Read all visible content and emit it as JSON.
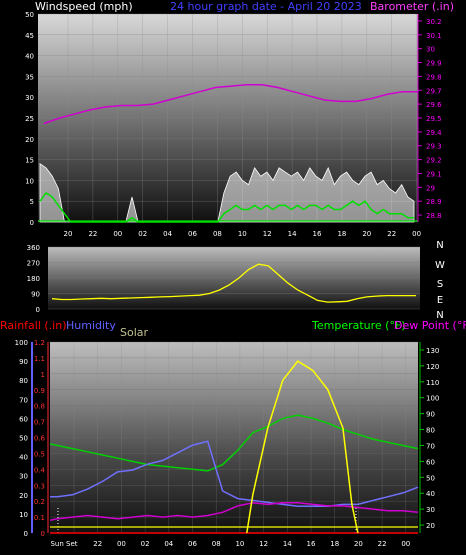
{
  "header": {
    "left_title": "Windspeed (mph)",
    "center_title": "24 hour graph date - April 20 2023",
    "right_title": "Barometer (.in)"
  },
  "compass": [
    "N",
    "W",
    "S",
    "E",
    "N"
  ],
  "bottom_labels": {
    "rainfall": "Rainfall (.in)",
    "humidity": "Humidity",
    "solar": "Solar",
    "temperature": "Temperature (°F)",
    "dewpoint": "Dew Point (°F)",
    "x_start": "Sun Set"
  },
  "colors": {
    "wind_speed": "#ffffff",
    "wind_avg": "#00e000",
    "barometer": "#d000d0",
    "direction": "#ffff00",
    "rain": "#ff0000",
    "humidity": "#7070ff",
    "solar": "#ffff00",
    "temperature": "#00d000",
    "dewpoint": "#d000d0",
    "text_green": "#00ff00",
    "text_pink": "#ff00ff",
    "text_blue": "#5050ff",
    "text_red": "#ff0000",
    "text_solar": "#c0c090"
  },
  "chart_data": [
    {
      "type": "area",
      "id": "wind",
      "ylabel": "Windspeed (mph)",
      "y2label": "Barometer (.in)",
      "x_ticks": [
        "20",
        "22",
        "00",
        "02",
        "04",
        "06",
        "08",
        "10",
        "12",
        "14",
        "16",
        "18",
        "20",
        "22",
        "00"
      ],
      "y_ticks": [
        0,
        5,
        10,
        15,
        20,
        25,
        30,
        35,
        40,
        45,
        50
      ],
      "ylim": [
        0,
        50
      ],
      "y2_ticks": [
        "28.8",
        "28.9",
        "29",
        "29.1",
        "29.2",
        "29.3",
        "29.4",
        "29.5",
        "29.6",
        "29.7",
        "29.8",
        "29.9",
        "30",
        "30.1",
        "30.2"
      ],
      "y2lim": [
        28.75,
        30.25
      ],
      "x_hours": [
        19,
        20,
        21,
        22,
        23,
        24,
        25,
        26,
        27,
        28,
        29,
        30,
        31,
        32,
        33,
        34,
        35,
        36,
        37,
        38,
        39,
        40,
        41,
        42,
        43
      ],
      "barometer": [
        29.46,
        29.5,
        29.53,
        29.56,
        29.58,
        29.59,
        29.59,
        29.6,
        29.63,
        29.66,
        29.69,
        29.72,
        29.73,
        29.74,
        29.74,
        29.72,
        29.69,
        29.66,
        29.63,
        29.62,
        29.62,
        29.64,
        29.67,
        29.69,
        29.69
      ],
      "gust": [
        14,
        13,
        11,
        8,
        0,
        0,
        0,
        0,
        0,
        0,
        0,
        0,
        0,
        0,
        0,
        6,
        0,
        0,
        0,
        0,
        0,
        0,
        0,
        0,
        0,
        0,
        0,
        0,
        0,
        0,
        7,
        11,
        12,
        10,
        9,
        13,
        11,
        12,
        10,
        13,
        12,
        11,
        12,
        10,
        13,
        11,
        10,
        13,
        9,
        11,
        12,
        10,
        9,
        11,
        12,
        9,
        10,
        8,
        7,
        9,
        6,
        5
      ],
      "avg": [
        5,
        7,
        6,
        4,
        2,
        0,
        0,
        0,
        0,
        0,
        0,
        0,
        0,
        0,
        0,
        1,
        0,
        0,
        0,
        0,
        0,
        0,
        0,
        0,
        0,
        0,
        0,
        0,
        0,
        0,
        2,
        3,
        4,
        3,
        3,
        4,
        3,
        4,
        3,
        4,
        4,
        3,
        4,
        3,
        4,
        4,
        3,
        4,
        3,
        3,
        4,
        5,
        4,
        5,
        3,
        2,
        3,
        2,
        2,
        2,
        1,
        1
      ]
    },
    {
      "type": "line",
      "id": "direction",
      "ylabel": "Wind direction",
      "y_ticks": [
        0,
        90,
        180,
        270,
        360
      ],
      "ylim": [
        0,
        360
      ],
      "direction": [
        60,
        55,
        55,
        58,
        60,
        62,
        60,
        62,
        64,
        66,
        68,
        70,
        72,
        75,
        78,
        80,
        90,
        110,
        140,
        180,
        230,
        260,
        250,
        200,
        150,
        110,
        80,
        50,
        40,
        42,
        45,
        60,
        70,
        75,
        78,
        78,
        78,
        78
      ]
    },
    {
      "type": "line",
      "id": "climate",
      "x_start_label": "Sun Set",
      "x_ticks": [
        "20",
        "22",
        "00",
        "02",
        "04",
        "06",
        "08",
        "10",
        "12",
        "14",
        "16",
        "18",
        "20",
        "22",
        "00"
      ],
      "y_ticks_humidity": [
        0,
        10,
        20,
        30,
        40,
        50,
        60,
        70,
        80,
        90,
        100
      ],
      "y_ticks_rain": [
        "0",
        "0.1",
        "0.2",
        "0.3",
        "0.4",
        "0.5",
        "0.6",
        "0.7",
        "0.8",
        "0.9",
        "1",
        "1.1",
        "1.2"
      ],
      "y_ticks_temp": [
        20,
        30,
        40,
        50,
        60,
        70,
        80,
        90,
        100,
        110,
        120,
        130
      ],
      "humidity_lim": [
        0,
        100
      ],
      "temp_lim": [
        15,
        135
      ],
      "rain_lim": [
        0,
        1.2
      ],
      "x_hours": [
        18.5,
        19,
        20,
        21,
        22,
        23,
        24,
        25,
        26,
        27,
        28,
        29,
        30,
        31,
        32,
        33,
        34,
        35,
        36,
        37,
        38,
        39,
        40,
        41,
        42,
        43
      ],
      "temperature": [
        71,
        70,
        68,
        66,
        64,
        62,
        60,
        58,
        57,
        56,
        55,
        54,
        58,
        67,
        78,
        82,
        87,
        89,
        87,
        84,
        80,
        77,
        74,
        72,
        70,
        68
      ],
      "humidity": [
        19,
        19,
        20,
        23,
        27,
        32,
        33,
        36,
        38,
        42,
        46,
        48,
        22,
        18,
        17,
        16,
        15,
        14,
        14,
        14,
        15,
        15,
        17,
        19,
        21,
        24
      ],
      "dewpoint": [
        23,
        24,
        25,
        26,
        25,
        24,
        25,
        26,
        25,
        26,
        25,
        26,
        28,
        32,
        34,
        33,
        34,
        34,
        33,
        32,
        32,
        31,
        30,
        29,
        29,
        28
      ],
      "rain": [
        0,
        0,
        0,
        0,
        0,
        0,
        0,
        0,
        0,
        0,
        0,
        0,
        0,
        0,
        0,
        0,
        0,
        0,
        0,
        0,
        0,
        0,
        0,
        0,
        0,
        0
      ],
      "solar_hours": [
        31.6,
        32,
        33,
        34,
        35,
        36,
        37,
        38,
        38.6,
        39
      ],
      "solar": [
        0,
        20,
        55,
        80,
        90,
        85,
        75,
        55,
        15,
        0
      ]
    }
  ]
}
